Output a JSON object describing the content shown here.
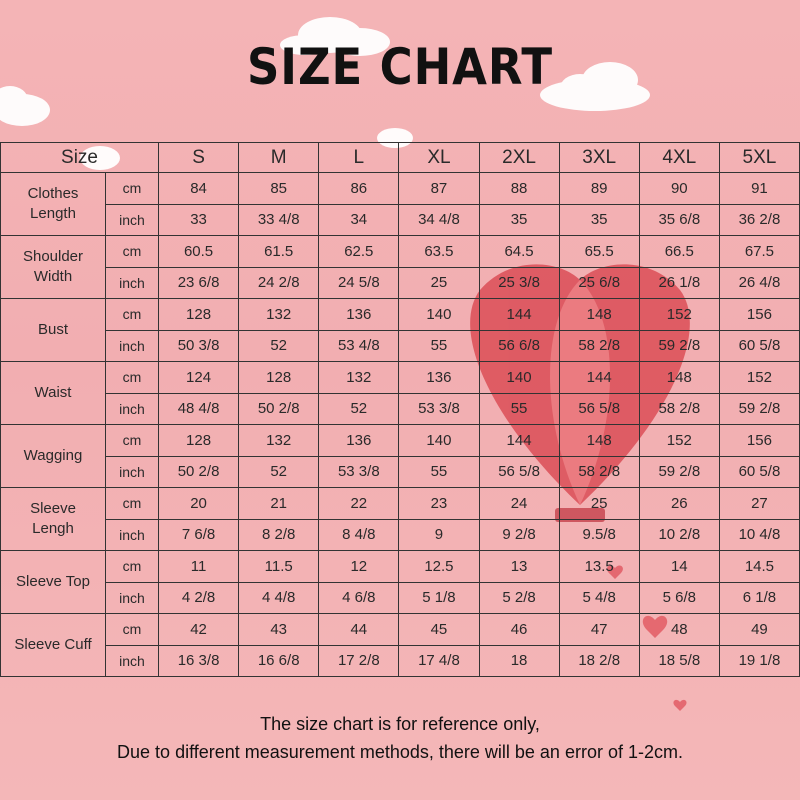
{
  "header": {
    "title": "SIZE CHART"
  },
  "table": {
    "header": [
      "Size",
      "S",
      "M",
      "L",
      "XL",
      "2XL",
      "3XL",
      "4XL",
      "5XL"
    ],
    "groups": [
      {
        "label": "Clothes Length",
        "rows": [
          {
            "unit": "cm",
            "values": [
              "84",
              "85",
              "86",
              "87",
              "88",
              "89",
              "90",
              "91"
            ]
          },
          {
            "unit": "inch",
            "values": [
              "33",
              "33 4/8",
              "34",
              "34 4/8",
              "35",
              "35",
              "35 6/8",
              "36 2/8"
            ]
          }
        ]
      },
      {
        "label": "Shoulder Width",
        "rows": [
          {
            "unit": "cm",
            "values": [
              "60.5",
              "61.5",
              "62.5",
              "63.5",
              "64.5",
              "65.5",
              "66.5",
              "67.5"
            ]
          },
          {
            "unit": "inch",
            "values": [
              "23 6/8",
              "24 2/8",
              "24 5/8",
              "25",
              "25 3/8",
              "25 6/8",
              "26 1/8",
              "26 4/8"
            ]
          }
        ]
      },
      {
        "label": "Bust",
        "rows": [
          {
            "unit": "cm",
            "values": [
              "128",
              "132",
              "136",
              "140",
              "144",
              "148",
              "152",
              "156"
            ]
          },
          {
            "unit": "inch",
            "values": [
              "50 3/8",
              "52",
              "53 4/8",
              "55",
              "56 6/8",
              "58 2/8",
              "59 2/8",
              "60 5/8"
            ]
          }
        ]
      },
      {
        "label": "Waist",
        "rows": [
          {
            "unit": "cm",
            "values": [
              "124",
              "128",
              "132",
              "136",
              "140",
              "144",
              "148",
              "152"
            ]
          },
          {
            "unit": "inch",
            "values": [
              "48 4/8",
              "50 2/8",
              "52",
              "53 3/8",
              "55",
              "56 5/8",
              "58 2/8",
              "59 2/8"
            ]
          }
        ]
      },
      {
        "label": "Wagging",
        "rows": [
          {
            "unit": "cm",
            "values": [
              "128",
              "132",
              "136",
              "140",
              "144",
              "148",
              "152",
              "156"
            ]
          },
          {
            "unit": "inch",
            "values": [
              "50 2/8",
              "52",
              "53 3/8",
              "55",
              "56 5/8",
              "58 2/8",
              "59 2/8",
              "60 5/8"
            ]
          }
        ]
      },
      {
        "label": "Sleeve Lengh",
        "rows": [
          {
            "unit": "cm",
            "values": [
              "20",
              "21",
              "22",
              "23",
              "24",
              "25",
              "26",
              "27"
            ]
          },
          {
            "unit": "inch",
            "values": [
              "7 6/8",
              "8 2/8",
              "8 4/8",
              "9",
              "9 2/8",
              "9.5/8",
              "10 2/8",
              "10 4/8"
            ]
          }
        ]
      },
      {
        "label": "Sleeve Top",
        "rows": [
          {
            "unit": "cm",
            "values": [
              "11",
              "11.5",
              "12",
              "12.5",
              "13",
              "13.5",
              "14",
              "14.5"
            ]
          },
          {
            "unit": "inch",
            "values": [
              "4 2/8",
              "4 4/8",
              "4 6/8",
              "5 1/8",
              "5 2/8",
              "5 4/8",
              "5 6/8",
              "6 1/8"
            ]
          }
        ]
      },
      {
        "label": "Sleeve Cuff",
        "rows": [
          {
            "unit": "cm",
            "values": [
              "42",
              "43",
              "44",
              "45",
              "46",
              "47",
              "48",
              "49"
            ]
          },
          {
            "unit": "inch",
            "values": [
              "16 3/8",
              "16 6/8",
              "17 2/8",
              "17 4/8",
              "18",
              "18 2/8",
              "18 5/8",
              "19 1/8"
            ]
          }
        ]
      }
    ]
  },
  "footer": {
    "notes": [
      "The size chart is for reference only,",
      "Due to different measurement methods, there will be an error of 1-2cm."
    ]
  }
}
